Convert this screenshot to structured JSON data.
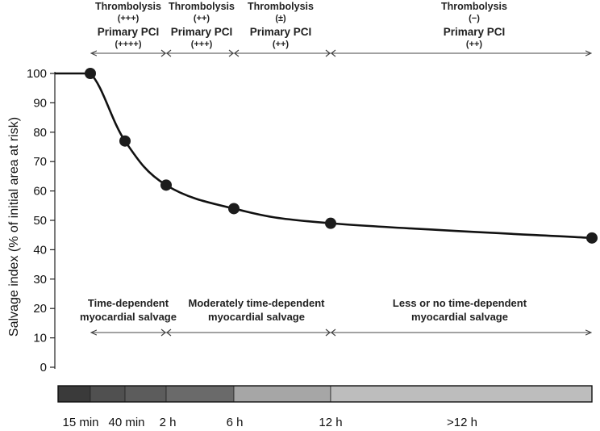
{
  "chart_data": {
    "type": "line",
    "ylabel": "Salvage index (% of initial area at risk)",
    "ylim": [
      0,
      100
    ],
    "yticks": [
      0,
      10,
      20,
      30,
      40,
      50,
      60,
      70,
      80,
      90,
      100
    ],
    "series": [
      {
        "x": [
          "15 min",
          "40 min",
          "2 h",
          "6 h",
          "12 h",
          ">12 h"
        ],
        "values": [
          100,
          77,
          62,
          54,
          49,
          44
        ]
      }
    ],
    "time_labels": [
      "15 min",
      "40 min",
      "2 h",
      "6 h",
      "12 h",
      ">12 h"
    ],
    "time_bar_segments": [
      {
        "color": "#3a3a3a"
      },
      {
        "color": "#505050"
      },
      {
        "color": "#5c5c5c"
      },
      {
        "color": "#6a6a6a"
      },
      {
        "color": "#a6a6a6"
      },
      {
        "color": "#bdbdbd"
      }
    ],
    "top_annotations": [
      {
        "thrombolysis": "Thrombolysis",
        "thrombolysis_grade": "(+++)",
        "pci": "Primary PCI",
        "pci_grade": "(++++)"
      },
      {
        "thrombolysis": "Thrombolysis",
        "thrombolysis_grade": "(++)",
        "pci": "Primary PCI",
        "pci_grade": "(+++)"
      },
      {
        "thrombolysis": "Thrombolysis",
        "thrombolysis_grade": "(±)",
        "pci": "Primary PCI",
        "pci_grade": "(++)"
      },
      {
        "thrombolysis": "Thrombolysis",
        "thrombolysis_grade": "(−)",
        "pci": "Primary PCI",
        "pci_grade": "(++)"
      }
    ],
    "bottom_annotations": [
      {
        "line1": "Time-dependent",
        "line2": "myocardial salvage"
      },
      {
        "line1": "Moderately time-dependent",
        "line2": "myocardial salvage"
      },
      {
        "line1": "Less or no time-dependent",
        "line2": "myocardial salvage"
      }
    ],
    "colors": {
      "line": "#111111",
      "marker": "#1c1c1c",
      "arrow": "#444444"
    }
  }
}
